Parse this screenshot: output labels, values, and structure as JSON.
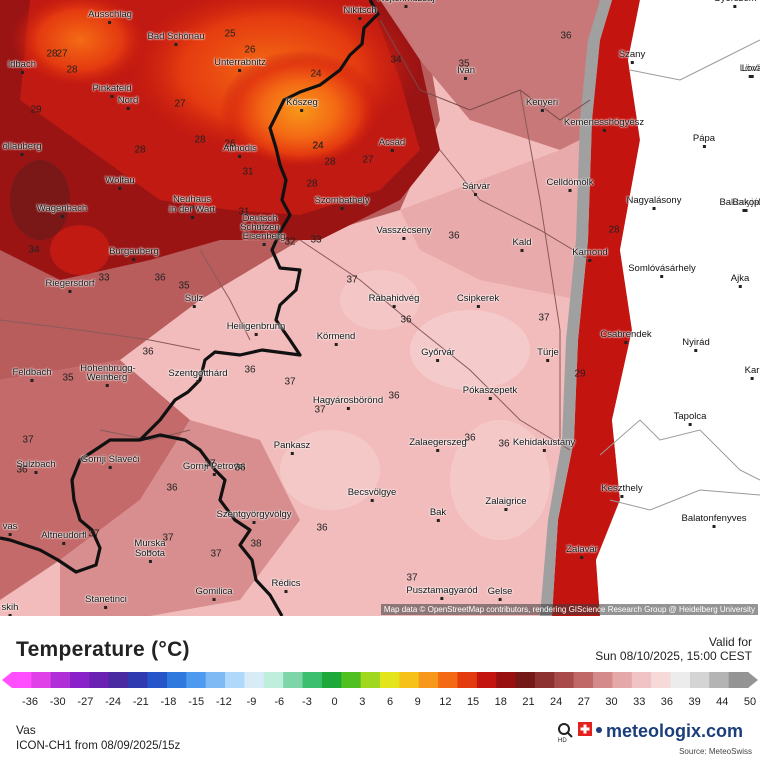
{
  "map": {
    "attribution": "Map data © OpenStreetMap contributors, rendering GIScience Research Group @ Heidelberg University",
    "cities": [
      {
        "name": "Rojtokmuzsaj"
      },
      {
        "name": "Nikitsch"
      },
      {
        "name": "Ausschlag"
      },
      {
        "name": "Bad Schönau"
      },
      {
        "name": "Unterrabnitz"
      },
      {
        "name": "Szany"
      },
      {
        "name": "Lövő"
      },
      {
        "name": "Iván"
      },
      {
        "name": "ldbach"
      },
      {
        "name": "Pinkafeld"
      },
      {
        "name": "Nord"
      },
      {
        "name": "Kőszeg"
      },
      {
        "name": "Kenyeri"
      },
      {
        "name": "Kemenesshögyész"
      },
      {
        "name": "Pápa"
      },
      {
        "name": "öllauberg"
      },
      {
        "name": "Althodis"
      },
      {
        "name": "Acsád"
      },
      {
        "name": "Wolfau"
      },
      {
        "name": "Sárvár"
      },
      {
        "name": "Celldömölk"
      },
      {
        "name": "Szombathely"
      },
      {
        "name": "Nagyalásony"
      },
      {
        "name": "Bakonyjákó"
      },
      {
        "name": "Wagenbach"
      },
      {
        "name": "Neuhaus"
      },
      {
        "name": "in der Wart"
      },
      {
        "name": "Deutsch"
      },
      {
        "name": "Schützen"
      },
      {
        "name": "Eisenberg"
      },
      {
        "name": "Vasszécseny"
      },
      {
        "name": "Kald"
      },
      {
        "name": "Kamond"
      },
      {
        "name": "Burgauberg"
      },
      {
        "name": "Somlóvásárhely"
      },
      {
        "name": "Ajka"
      },
      {
        "name": "Riegersdorf"
      },
      {
        "name": "Sulz"
      },
      {
        "name": "Rábahidvég"
      },
      {
        "name": "Csipkerek"
      },
      {
        "name": "Heiligenbrunn"
      },
      {
        "name": "Körmend"
      },
      {
        "name": "Csabrendek"
      },
      {
        "name": "Nyirád"
      },
      {
        "name": "Győrvár"
      },
      {
        "name": "Türje"
      },
      {
        "name": "Feldbach"
      },
      {
        "name": "Hohenbrugg-"
      },
      {
        "name": "Weinberg"
      },
      {
        "name": "Szentgotthárd"
      },
      {
        "name": "Pókaszepetk"
      },
      {
        "name": "Hagyárosbörönd"
      },
      {
        "name": "Tapolca"
      },
      {
        "name": "Zalaegerszeg"
      },
      {
        "name": "Kehidakustány"
      },
      {
        "name": "Pankasz"
      },
      {
        "name": "Sulzbach"
      },
      {
        "name": "Gornji Slaveči"
      },
      {
        "name": "Gornji Petrovci"
      },
      {
        "name": "Becsvölgye"
      },
      {
        "name": "Keszthely"
      },
      {
        "name": "Zalaigrice"
      },
      {
        "name": "Bak"
      },
      {
        "name": "Balatonfenyves"
      },
      {
        "name": "Szentgyörgyvölgy"
      },
      {
        "name": "Altneudörfl"
      },
      {
        "name": "Murska"
      },
      {
        "name": "Sobota"
      },
      {
        "name": "Zalavár"
      },
      {
        "name": "Pusztamagyaród"
      },
      {
        "name": "Gelse"
      },
      {
        "name": "Rédics"
      },
      {
        "name": "Gomilica"
      },
      {
        "name": "Stanetinci"
      },
      {
        "name": "Győrszem"
      },
      {
        "name": "Bakop"
      },
      {
        "name": "Kar"
      },
      {
        "name": "Lova"
      },
      {
        "name": "skih"
      },
      {
        "name": "vas"
      }
    ],
    "values": [
      "27",
      "28",
      "28",
      "26",
      "25",
      "24",
      "34",
      "35",
      "24",
      "27",
      "29",
      "28",
      "28",
      "26",
      "24",
      "28",
      "27",
      "36",
      "31",
      "28",
      "31",
      "33",
      "32",
      "36",
      "34",
      "36",
      "35",
      "33",
      "37",
      "36",
      "37",
      "36",
      "36",
      "37",
      "36",
      "35",
      "37",
      "36",
      "36",
      "37",
      "36",
      "36",
      "37",
      "36",
      "36",
      "37",
      "37",
      "38",
      "37",
      "37",
      "29",
      "28"
    ]
  },
  "legend": {
    "title": "Temperature (°C)",
    "valid_label": "Valid for",
    "valid_time": "Sun 08/10/2025, 15:00 CEST",
    "ticks": [
      "-36",
      "-30",
      "-27",
      "-24",
      "-21",
      "-18",
      "-15",
      "-12",
      "-9",
      "-6",
      "-3",
      "0",
      "3",
      "6",
      "9",
      "12",
      "15",
      "18",
      "21",
      "24",
      "27",
      "30",
      "33",
      "36",
      "39",
      "44",
      "50"
    ],
    "colors": [
      "#ff4fff",
      "#e040e8",
      "#b030d8",
      "#8a20c8",
      "#6a20b0",
      "#4a2aa0",
      "#2f3ab0",
      "#2555c8",
      "#2f78de",
      "#4f9aee",
      "#7fbaf5",
      "#b0d8fa",
      "#d8ecf7",
      "#bfeedd",
      "#7ed6a8",
      "#3cbf6e",
      "#1ea83a",
      "#50c020",
      "#a0d820",
      "#e4e41c",
      "#f6c21a",
      "#f7981a",
      "#f46a14",
      "#e43a10",
      "#c41410",
      "#981010",
      "#741818",
      "#8c3030",
      "#a84a4a",
      "#c06868",
      "#d48a8a",
      "#e4a8a8",
      "#f0c4c4",
      "#f6dada",
      "#ececec",
      "#d4d4d4",
      "#b4b4b4",
      "#949494"
    ]
  },
  "footer": {
    "region": "Vas",
    "model": "ICON-CH1 from  08/09/2025/15z",
    "brand": "meteologix.com",
    "source": "Source: MeteoSwiss"
  }
}
